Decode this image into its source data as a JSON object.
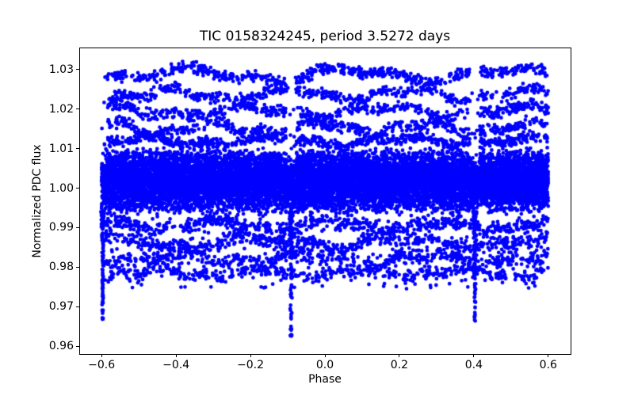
{
  "chart_data": {
    "type": "scatter",
    "title": "TIC 0158324245, period 3.5272 days",
    "xlabel": "Phase",
    "ylabel": "Normalized PDC flux",
    "marker_color": "#0000ff",
    "marker_radius_px": 2.4,
    "grid": false,
    "legend": null,
    "xlim": [
      -0.66,
      0.66
    ],
    "ylim": [
      0.958,
      1.0356
    ],
    "x_ticks": [
      {
        "v": -0.6,
        "label": "−0.6"
      },
      {
        "v": -0.4,
        "label": "−0.4"
      },
      {
        "v": -0.2,
        "label": "−0.2"
      },
      {
        "v": 0.0,
        "label": "0.0"
      },
      {
        "v": 0.2,
        "label": "0.2"
      },
      {
        "v": 0.4,
        "label": "0.4"
      },
      {
        "v": 0.6,
        "label": "0.6"
      }
    ],
    "y_ticks": [
      {
        "v": 0.96,
        "label": "0.96"
      },
      {
        "v": 0.97,
        "label": "0.97"
      },
      {
        "v": 0.98,
        "label": "0.98"
      },
      {
        "v": 0.99,
        "label": "0.99"
      },
      {
        "v": 1.0,
        "label": "1.00"
      },
      {
        "v": 1.01,
        "label": "1.01"
      },
      {
        "v": 1.02,
        "label": "1.02"
      },
      {
        "v": 1.03,
        "label": "1.03"
      }
    ],
    "phase_range": [
      -0.6,
      0.6
    ],
    "distribution": {
      "seed": 1234567,
      "core_band": {
        "center": 1.0018,
        "half_width": 0.0085,
        "n": 13000
      },
      "upper_streaks": [
        {
          "c": 1.0287,
          "amp": 0.0013,
          "freq": 2.3,
          "ph0": 0.1,
          "half": 0.0013,
          "n": 640
        },
        {
          "c": 1.0237,
          "amp": 0.0011,
          "freq": 3.1,
          "ph0": 0.55,
          "half": 0.0013,
          "n": 560
        },
        {
          "c": 1.0194,
          "amp": 0.0011,
          "freq": 2.7,
          "ph0": 0.8,
          "half": 0.0013,
          "n": 640
        },
        {
          "c": 1.0152,
          "amp": 0.0012,
          "freq": 3.5,
          "ph0": 0.3,
          "half": 0.0013,
          "n": 600
        },
        {
          "c": 1.0119,
          "amp": 0.0008,
          "freq": 2.9,
          "ph0": 0.65,
          "half": 0.0012,
          "n": 780
        }
      ],
      "lower_streaks": [
        {
          "c": 0.9906,
          "amp": 0.001,
          "freq": 3.3,
          "ph0": 0.2,
          "half": 0.0015,
          "n": 660
        },
        {
          "c": 0.9863,
          "amp": 0.0011,
          "freq": 2.5,
          "ph0": 0.7,
          "half": 0.0015,
          "n": 580
        },
        {
          "c": 0.9821,
          "amp": 0.0012,
          "freq": 3.0,
          "ph0": 0.4,
          "half": 0.0016,
          "n": 580
        },
        {
          "c": 0.9784,
          "amp": 0.0008,
          "freq": 3.7,
          "ph0": 0.9,
          "half": 0.0013,
          "n": 430
        }
      ],
      "sparse_lower": {
        "min": 0.9745,
        "max": 0.9935,
        "n": 360
      },
      "eclipse_dips": [
        {
          "phase": -0.597,
          "min_flux": 0.965,
          "top_flux": 0.994,
          "n": 120,
          "width": 0.0055
        },
        {
          "phase": -0.091,
          "min_flux": 0.962,
          "top_flux": 0.994,
          "n": 140,
          "width": 0.0065
        },
        {
          "phase": 0.403,
          "min_flux": 0.9656,
          "top_flux": 0.994,
          "n": 115,
          "width": 0.0065
        }
      ],
      "dip_gap_half_width": 0.013
    }
  }
}
